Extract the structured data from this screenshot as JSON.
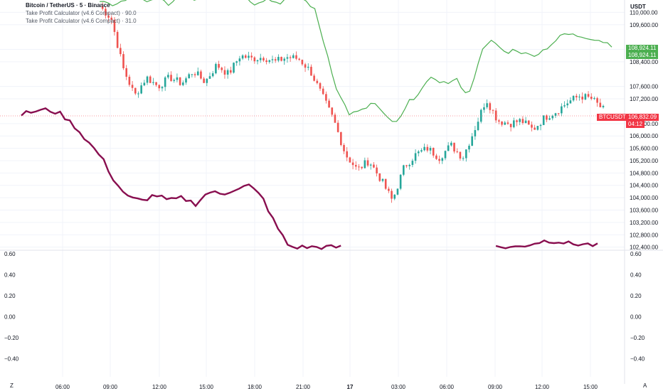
{
  "legend": {
    "symbol": "Bitcoin / TetherUS · 5 · Binance",
    "indicator1": "Take Profit Calculator (v4.6 Compact) · 90.0",
    "indicator2": "Take Profit Calculator (v4.6 Compact) · 31.0"
  },
  "currency": "USDT",
  "btc_tag": {
    "symbol": "BTCUSDT",
    "price": "106,832.09",
    "timer": "04:12",
    "color": "#f23645"
  },
  "green_tag": {
    "price1": "108,924.11",
    "price2": "108,924.11",
    "color": "#4caf50"
  },
  "bottom_letters": {
    "left": "Z",
    "right": "A"
  },
  "colors": {
    "up": "#26a69a",
    "down": "#ef5350",
    "green_line": "#4caf50",
    "purple_line": "#880e4f",
    "grid": "#f0f3fa"
  },
  "chart_data": [
    {
      "type": "candlestick",
      "y_ticks": [
        "110,000.00",
        "109,600.00",
        "108,800.00",
        "108,400.00",
        "107,600.00",
        "107,200.00",
        "106,400.00",
        "106,000.00",
        "105,600.00",
        "105,200.00",
        "104,800.00",
        "104,400.00",
        "104,000.00",
        "103,600.00",
        "103,200.00",
        "102,800.00",
        "102,400.00"
      ],
      "x_ticks": [
        "06:00",
        "09:00",
        "12:00",
        "15:00",
        "18:00",
        "21:00",
        "17",
        "03:00",
        "06:00",
        "09:00",
        "12:00",
        "15:00"
      ],
      "series": [
        {
          "kind": "candles",
          "close_path": [
            110200,
            109800,
            108200,
            107300,
            107900,
            107600,
            107900,
            107700,
            108100,
            107750,
            108300,
            108000,
            108600,
            108500,
            108550,
            108400,
            108550,
            108500,
            108100,
            107300,
            106500,
            105400,
            104900,
            105200,
            104600,
            103900,
            105000,
            105400,
            105600,
            105300,
            105700,
            105300,
            106200,
            107200,
            106500,
            106400,
            106500,
            106200,
            106600,
            106800,
            107100,
            107300,
            107200,
            106850
          ]
        },
        {
          "kind": "line",
          "name_hidden": true,
          "path": [
            110300,
            110250,
            110350,
            110500,
            110300,
            110450,
            110250,
            110600,
            110400,
            110700,
            110500,
            110650,
            110550,
            110300,
            110450,
            110300,
            110500,
            110450,
            110150,
            108800,
            107400,
            106700,
            106800,
            107100,
            106600,
            106400,
            107100,
            107500,
            107900,
            107700,
            107800,
            107300,
            108700,
            109100,
            108700,
            108800,
            108600,
            108700,
            109000,
            109300,
            109250,
            109200,
            109100,
            108950
          ]
        },
        {
          "kind": "line",
          "name_hidden": true,
          "path": [
            106700,
            106800,
            106850,
            106700,
            106300,
            105800,
            105300,
            104500,
            104000,
            103900,
            104100,
            103900,
            104000,
            103800,
            104200,
            104100,
            104300,
            104400,
            104000,
            103100,
            102400,
            102400,
            102400,
            102400,
            102400,
            102400,
            102400,
            102400,
            102400,
            102400,
            102400,
            102400,
            102500,
            102400,
            102400,
            102400,
            102400,
            102400,
            102500,
            102600,
            102600,
            102500,
            102500,
            102450
          ]
        }
      ]
    },
    {
      "type": "line",
      "title": "",
      "y_ticks": [
        "0.60",
        "0.40",
        "0.20",
        "0.00",
        "−0.20",
        "−0.40"
      ],
      "series": []
    }
  ]
}
